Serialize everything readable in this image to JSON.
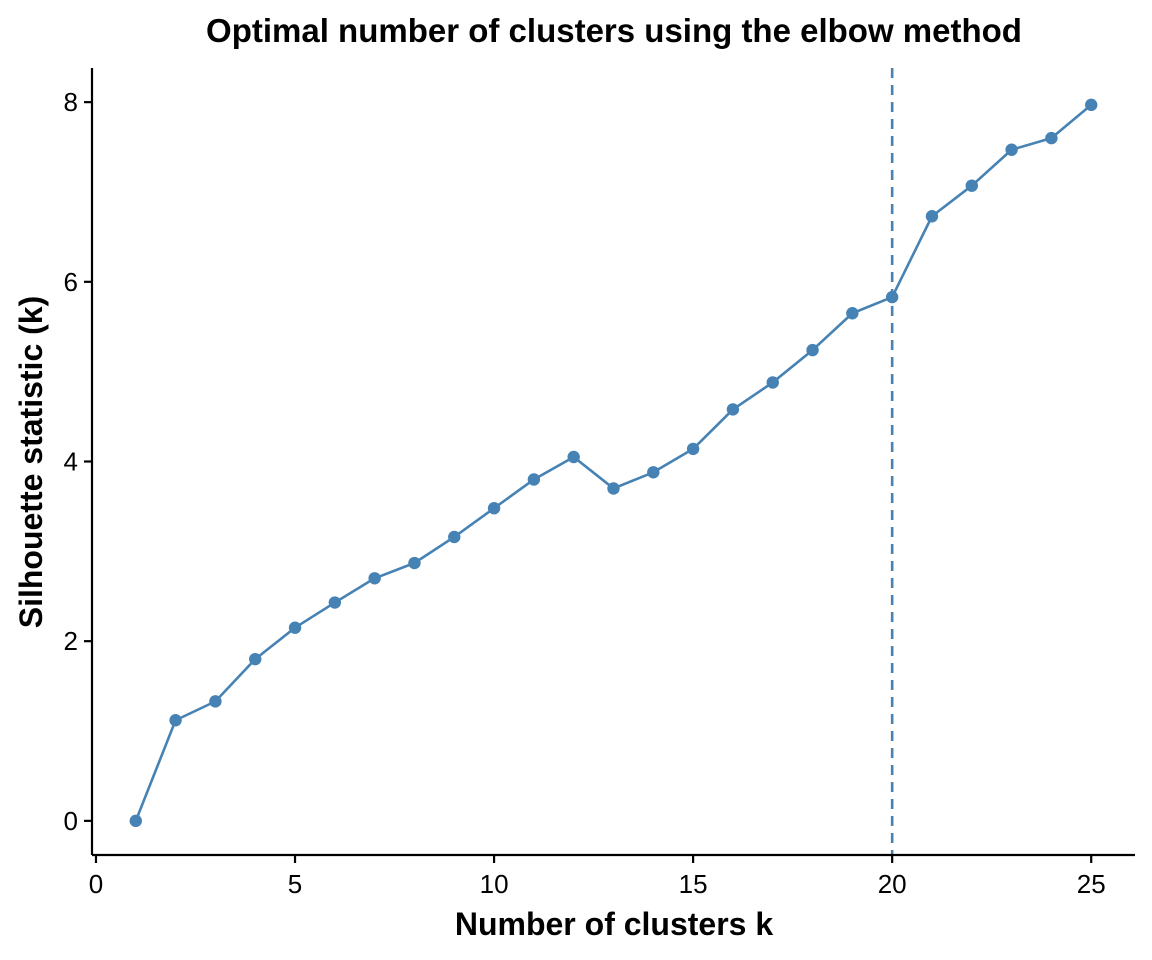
{
  "chart_data": {
    "type": "line",
    "title": "Optimal number of clusters using the elbow method",
    "xlabel": "Number of clusters k",
    "ylabel": "Silhouette statistic (k)",
    "x": [
      1,
      2,
      3,
      4,
      5,
      6,
      7,
      8,
      9,
      10,
      11,
      12,
      13,
      14,
      15,
      16,
      17,
      18,
      19,
      20,
      21,
      22,
      23,
      24,
      25
    ],
    "series": [
      {
        "values": [
          0.0,
          1.12,
          1.33,
          1.8,
          2.15,
          2.43,
          2.7,
          2.87,
          3.16,
          3.48,
          3.8,
          4.05,
          3.7,
          3.88,
          4.14,
          4.58,
          4.88,
          5.24,
          5.65,
          5.83,
          6.73,
          7.07,
          7.47,
          7.6,
          7.97
        ],
        "color": "#4682B4"
      }
    ],
    "xlim": [
      -0.1,
      26.1
    ],
    "ylim": [
      -0.38,
      8.38
    ],
    "xticks": [
      0,
      5,
      10,
      15,
      20,
      25
    ],
    "xtick_labels": [
      "0",
      "5",
      "10",
      "15",
      "20",
      "25"
    ],
    "yticks": [
      0,
      2,
      4,
      6,
      8
    ],
    "ytick_labels": [
      "0",
      "2",
      "4",
      "6",
      "8"
    ],
    "vline": {
      "x": 20,
      "style": "dashed",
      "color": "#4682B4"
    },
    "grid": false,
    "legend": "none"
  }
}
